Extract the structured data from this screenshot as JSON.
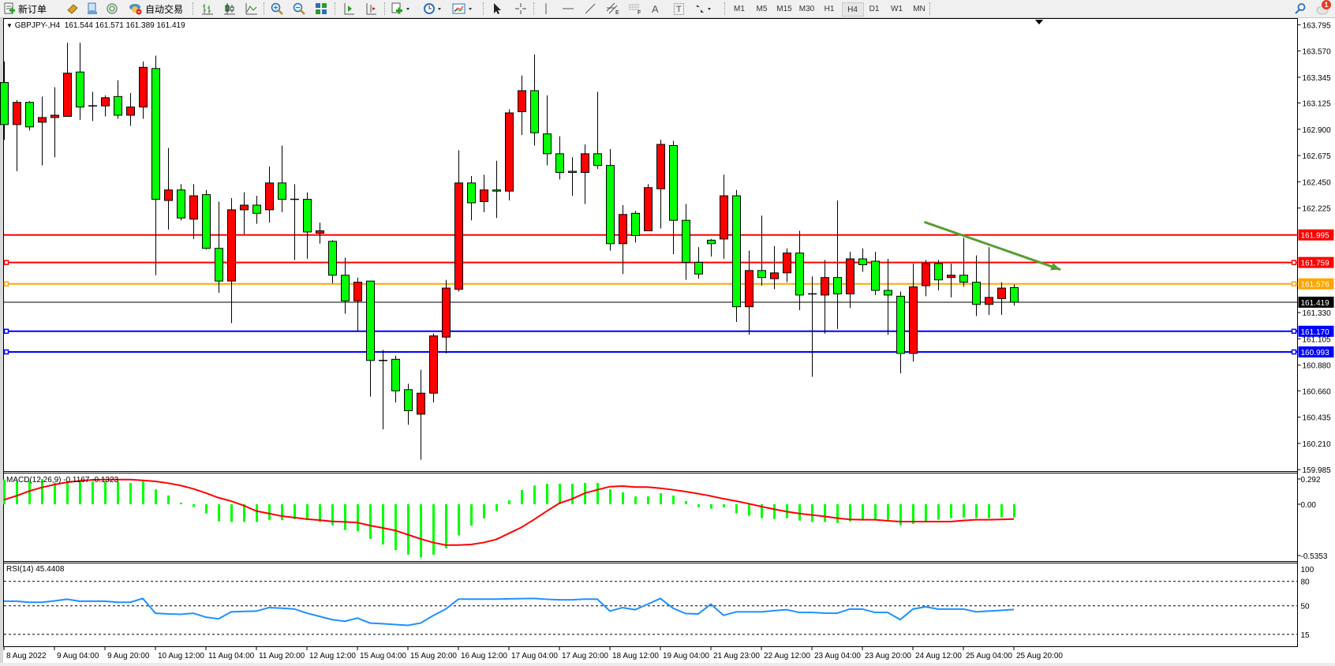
{
  "toolbar": {
    "new_order": "新订单",
    "auto_trading": "自动交易",
    "fibo_letter_e": "E",
    "fibo_letter_f": "F",
    "text_tool": "A",
    "text_label_tool": "T",
    "timeframes": [
      "M1",
      "M5",
      "M15",
      "M30",
      "H1",
      "H4",
      "D1",
      "W1",
      "MN"
    ],
    "active_timeframe": "H4",
    "notification_count": "1"
  },
  "chart": {
    "symbol_header": "GBPJPY-,H4",
    "ohlc_header": "161.544 161.571 161.389 161.419",
    "colors": {
      "bull": "#ff0000",
      "bear": "#00ff00",
      "outline": "#000000",
      "macd_hist": "#00ff00",
      "macd_signal": "#ff0000",
      "rsi": "#1e90ff",
      "trendline": "#5a9e32"
    },
    "price_ticks": [
      "163.795",
      "163.570",
      "163.345",
      "163.125",
      "162.900",
      "162.675",
      "162.450",
      "162.225",
      "161.330",
      "161.105",
      "160.880",
      "160.660",
      "160.435",
      "160.210",
      "159.985"
    ],
    "bid": {
      "price": "161.419",
      "color": "#000000"
    },
    "hlines": [
      {
        "price": "161.995",
        "color": "#ff0000",
        "marker": false
      },
      {
        "price": "161.759",
        "color": "#ff0000",
        "marker": true
      },
      {
        "price": "161.576",
        "color": "#ffa500",
        "marker": true
      },
      {
        "price": "161.170",
        "color": "#0000ff",
        "marker": true
      },
      {
        "price": "160.993",
        "color": "#0000ff",
        "marker": true
      }
    ],
    "trendline": {
      "from": {
        "bar": 72.9,
        "price": 162.106
      },
      "to": {
        "bar": 83.7,
        "price": 161.698
      },
      "arrow": true
    },
    "time_labels": [
      "8 Aug 2022",
      "9 Aug 04:00",
      "9 Aug 20:00",
      "10 Aug 12:00",
      "11 Aug 04:00",
      "11 Aug 20:00",
      "12 Aug 12:00",
      "15 Aug 04:00",
      "15 Aug 20:00",
      "16 Aug 12:00",
      "17 Aug 04:00",
      "17 Aug 20:00",
      "18 Aug 12:00",
      "19 Aug 04:00",
      "21 Aug 23:00",
      "22 Aug 12:00",
      "23 Aug 04:00",
      "23 Aug 20:00",
      "24 Aug 12:00",
      "25 Aug 04:00",
      "25 Aug 20:00"
    ]
  },
  "chart_data": [
    {
      "type": "candlestick",
      "title": "GBPJPY-,H4",
      "ylim": [
        159.985,
        163.795
      ],
      "fields": [
        "open",
        "high",
        "low",
        "close"
      ],
      "candles": [
        [
          163.3,
          163.48,
          162.81,
          162.94
        ],
        [
          162.94,
          163.15,
          162.54,
          163.13
        ],
        [
          163.13,
          163.14,
          162.89,
          162.92
        ],
        [
          162.96,
          163.18,
          162.59,
          163.0
        ],
        [
          163.0,
          163.26,
          162.66,
          163.02
        ],
        [
          163.01,
          163.64,
          163.01,
          163.38
        ],
        [
          163.39,
          163.64,
          162.98,
          163.09
        ],
        [
          163.1,
          163.22,
          162.97,
          163.1
        ],
        [
          163.1,
          163.19,
          163.01,
          163.17
        ],
        [
          163.18,
          163.32,
          162.99,
          163.02
        ],
        [
          163.02,
          163.21,
          162.93,
          163.09
        ],
        [
          163.09,
          163.48,
          162.99,
          163.43
        ],
        [
          163.42,
          163.53,
          161.65,
          162.3
        ],
        [
          162.29,
          162.74,
          162.04,
          162.38
        ],
        [
          162.38,
          162.43,
          162.12,
          162.14
        ],
        [
          162.13,
          162.43,
          161.96,
          162.33
        ],
        [
          162.34,
          162.38,
          161.87,
          161.88
        ],
        [
          161.88,
          162.28,
          161.5,
          161.6
        ],
        [
          161.6,
          162.31,
          161.24,
          162.21
        ],
        [
          162.21,
          162.36,
          162.0,
          162.25
        ],
        [
          162.25,
          162.33,
          162.09,
          162.18
        ],
        [
          162.21,
          162.58,
          162.1,
          162.44
        ],
        [
          162.44,
          162.76,
          162.19,
          162.3
        ],
        [
          162.3,
          162.43,
          161.78,
          162.3
        ],
        [
          162.3,
          162.36,
          161.79,
          162.02
        ],
        [
          162.01,
          162.1,
          161.92,
          162.03
        ],
        [
          161.94,
          161.95,
          161.58,
          161.65
        ],
        [
          161.65,
          161.8,
          161.32,
          161.43
        ],
        [
          161.43,
          161.63,
          161.17,
          161.59
        ],
        [
          161.6,
          161.6,
          160.61,
          160.92
        ],
        [
          160.92,
          161.01,
          160.33,
          160.92
        ],
        [
          160.93,
          160.96,
          160.56,
          160.66
        ],
        [
          160.67,
          160.72,
          160.37,
          160.49
        ],
        [
          160.46,
          160.84,
          160.07,
          160.64
        ],
        [
          160.64,
          161.15,
          160.56,
          161.13
        ],
        [
          161.12,
          161.61,
          160.98,
          161.54
        ],
        [
          161.53,
          162.72,
          161.51,
          162.44
        ],
        [
          162.44,
          162.5,
          162.12,
          162.27
        ],
        [
          162.28,
          162.51,
          162.19,
          162.38
        ],
        [
          162.38,
          162.63,
          162.14,
          162.37
        ],
        [
          162.37,
          163.07,
          162.29,
          163.04
        ],
        [
          163.05,
          163.36,
          162.85,
          163.23
        ],
        [
          163.23,
          163.54,
          162.76,
          162.87
        ],
        [
          162.86,
          163.19,
          162.59,
          162.69
        ],
        [
          162.69,
          162.84,
          162.47,
          162.53
        ],
        [
          162.54,
          162.66,
          162.33,
          162.53
        ],
        [
          162.53,
          162.77,
          162.26,
          162.69
        ],
        [
          162.69,
          163.22,
          162.56,
          162.59
        ],
        [
          162.59,
          162.73,
          161.86,
          161.92
        ],
        [
          161.92,
          162.25,
          161.66,
          162.17
        ],
        [
          162.18,
          162.2,
          161.93,
          161.99
        ],
        [
          162.03,
          162.43,
          162.03,
          162.4
        ],
        [
          162.39,
          162.81,
          162.05,
          162.77
        ],
        [
          162.76,
          162.8,
          161.83,
          162.12
        ],
        [
          162.12,
          162.26,
          161.61,
          161.76
        ],
        [
          161.76,
          161.89,
          161.62,
          161.66
        ],
        [
          161.95,
          161.96,
          161.81,
          161.92
        ],
        [
          161.96,
          162.51,
          161.79,
          162.33
        ],
        [
          162.33,
          162.38,
          161.25,
          161.38
        ],
        [
          161.38,
          161.86,
          161.14,
          161.69
        ],
        [
          161.69,
          162.16,
          161.56,
          161.63
        ],
        [
          161.62,
          161.9,
          161.53,
          161.67
        ],
        [
          161.67,
          161.88,
          161.59,
          161.84
        ],
        [
          161.84,
          162.03,
          161.35,
          161.48
        ],
        [
          161.49,
          161.64,
          160.78,
          161.49
        ],
        [
          161.48,
          161.78,
          161.15,
          161.63
        ],
        [
          161.63,
          162.29,
          161.19,
          161.49
        ],
        [
          161.49,
          161.85,
          161.37,
          161.79
        ],
        [
          161.79,
          161.88,
          161.68,
          161.74
        ],
        [
          161.77,
          161.85,
          161.48,
          161.52
        ],
        [
          161.52,
          161.79,
          161.14,
          161.48
        ],
        [
          161.47,
          161.51,
          160.81,
          160.98
        ],
        [
          160.98,
          161.75,
          160.91,
          161.55
        ],
        [
          161.56,
          161.78,
          161.47,
          161.75
        ],
        [
          161.75,
          161.78,
          161.52,
          161.61
        ],
        [
          161.63,
          161.75,
          161.46,
          161.65
        ],
        [
          161.65,
          161.97,
          161.55,
          161.59
        ],
        [
          161.59,
          161.82,
          161.3,
          161.4
        ],
        [
          161.4,
          161.89,
          161.31,
          161.46
        ],
        [
          161.45,
          161.59,
          161.31,
          161.54
        ],
        [
          161.544,
          161.571,
          161.389,
          161.419
        ]
      ]
    },
    {
      "type": "bar",
      "title": "MACD(12,26,9) -0.1167 -0.1323",
      "ylim": [
        -0.5353,
        0.292
      ],
      "tick_labels": [
        "0.292",
        "0.00",
        "-0.5353"
      ],
      "series": [
        {
          "kind": "histogram",
          "values": [
            0.22,
            0.204,
            0.209,
            0.225,
            0.192,
            0.204,
            0.204,
            0.204,
            0.204,
            0.204,
            0.19,
            0.204,
            0.133,
            0.078,
            0.014,
            -0.025,
            -0.082,
            -0.153,
            -0.158,
            -0.158,
            -0.158,
            -0.142,
            -0.142,
            -0.133,
            -0.142,
            -0.158,
            -0.188,
            -0.23,
            -0.242,
            -0.309,
            -0.359,
            -0.409,
            -0.45,
            -0.475,
            -0.45,
            -0.392,
            -0.279,
            -0.192,
            -0.125,
            -0.061,
            0.035,
            0.127,
            0.167,
            0.183,
            0.183,
            0.183,
            0.19,
            0.19,
            0.133,
            0.106,
            0.07,
            0.07,
            0.098,
            0.078,
            0.028,
            -0.026,
            -0.04,
            -0.026,
            -0.082,
            -0.103,
            -0.124,
            -0.132,
            -0.124,
            -0.145,
            -0.158,
            -0.158,
            -0.167,
            -0.153,
            -0.138,
            -0.138,
            -0.145,
            -0.188,
            -0.175,
            -0.153,
            -0.138,
            -0.124,
            -0.117,
            -0.124,
            -0.124,
            -0.117,
            -0.1167
          ]
        },
        {
          "kind": "signal",
          "values": [
            0.04,
            0.075,
            0.117,
            0.15,
            0.175,
            0.196,
            0.209,
            0.217,
            0.22,
            0.22,
            0.22,
            0.213,
            0.204,
            0.188,
            0.167,
            0.138,
            0.1,
            0.058,
            0.028,
            -0.012,
            -0.061,
            -0.083,
            -0.106,
            -0.119,
            -0.133,
            -0.142,
            -0.153,
            -0.158,
            -0.164,
            -0.19,
            -0.211,
            -0.234,
            -0.272,
            -0.309,
            -0.342,
            -0.364,
            -0.364,
            -0.359,
            -0.342,
            -0.314,
            -0.26,
            -0.206,
            -0.136,
            -0.061,
            0.009,
            0.047,
            0.098,
            0.129,
            0.157,
            0.162,
            0.153,
            0.153,
            0.143,
            0.129,
            0.113,
            0.094,
            0.073,
            0.049,
            0.028,
            0.005,
            -0.021,
            -0.044,
            -0.066,
            -0.083,
            -0.096,
            -0.108,
            -0.124,
            -0.136,
            -0.138,
            -0.138,
            -0.148,
            -0.155,
            -0.155,
            -0.155,
            -0.155,
            -0.155,
            -0.145,
            -0.138,
            -0.138,
            -0.136,
            -0.1323
          ]
        }
      ]
    },
    {
      "type": "line",
      "title": "RSI(14) 45.4408",
      "ylim": [
        0,
        100
      ],
      "tick_labels": [
        "100",
        "80",
        "50",
        "15"
      ],
      "levels": [
        80,
        50,
        15
      ],
      "values": [
        55.6,
        55.6,
        54.3,
        54.3,
        56,
        58,
        55.6,
        55.6,
        55.6,
        54.3,
        54.3,
        59,
        40.9,
        40,
        39.6,
        40.9,
        36,
        34,
        42.6,
        43,
        43.5,
        47.8,
        47,
        46.1,
        40.9,
        37,
        33,
        31,
        34.9,
        28.8,
        28,
        27,
        26,
        28.8,
        38,
        46,
        58.2,
        58.2,
        58.2,
        58.2,
        58.5,
        58.8,
        59,
        58,
        57.3,
        57.3,
        58.2,
        58.2,
        43.5,
        47.8,
        45.2,
        52,
        59,
        47,
        40.5,
        40,
        52,
        38.3,
        42.6,
        42.6,
        42.6,
        44,
        45.2,
        41.8,
        41.8,
        41,
        40.9,
        46,
        46,
        41.8,
        41.8,
        33,
        46,
        48.7,
        46,
        46,
        46,
        42.6,
        43.5,
        44.4,
        45.44
      ]
    }
  ]
}
